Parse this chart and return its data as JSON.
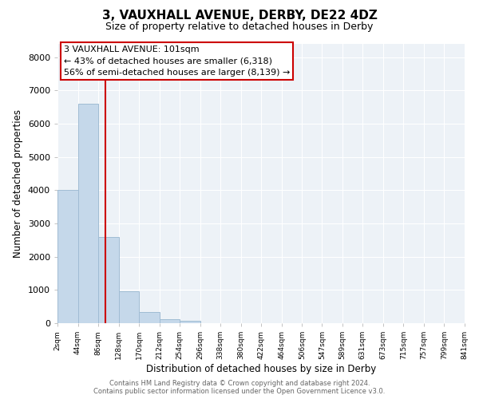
{
  "title": "3, VAUXHALL AVENUE, DERBY, DE22 4DZ",
  "subtitle": "Size of property relative to detached houses in Derby",
  "bar_edges": [
    2,
    44,
    86,
    128,
    170,
    212,
    254,
    296,
    338,
    380,
    422,
    464,
    506,
    547,
    589,
    631,
    673,
    715,
    757,
    799,
    841
  ],
  "bar_heights": [
    4000,
    6600,
    2600,
    970,
    330,
    130,
    70,
    0,
    0,
    0,
    0,
    0,
    0,
    0,
    0,
    0,
    0,
    0,
    0,
    0
  ],
  "bar_color": "#c5d8ea",
  "bar_edgecolor": "#a0bcd4",
  "property_line_x": 101,
  "property_line_color": "#cc0000",
  "annotation_text_line1": "3 VAUXHALL AVENUE: 101sqm",
  "annotation_text_line2": "← 43% of detached houses are smaller (6,318)",
  "annotation_text_line3": "56% of semi-detached houses are larger (8,139) →",
  "xlabel": "Distribution of detached houses by size in Derby",
  "ylabel": "Number of detached properties",
  "ylim": [
    0,
    8400
  ],
  "yticks": [
    0,
    1000,
    2000,
    3000,
    4000,
    5000,
    6000,
    7000,
    8000
  ],
  "xtick_labels": [
    "2sqm",
    "44sqm",
    "86sqm",
    "128sqm",
    "170sqm",
    "212sqm",
    "254sqm",
    "296sqm",
    "338sqm",
    "380sqm",
    "422sqm",
    "464sqm",
    "506sqm",
    "547sqm",
    "589sqm",
    "631sqm",
    "673sqm",
    "715sqm",
    "757sqm",
    "799sqm",
    "841sqm"
  ],
  "footer_line1": "Contains HM Land Registry data © Crown copyright and database right 2024.",
  "footer_line2": "Contains public sector information licensed under the Open Government Licence v3.0.",
  "background_color": "#ffffff",
  "plot_background_color": "#edf2f7",
  "grid_color": "#ffffff",
  "annotation_box_edgecolor": "#cc0000",
  "annotation_fontsize": 8.0,
  "title_fontsize": 11,
  "subtitle_fontsize": 9
}
